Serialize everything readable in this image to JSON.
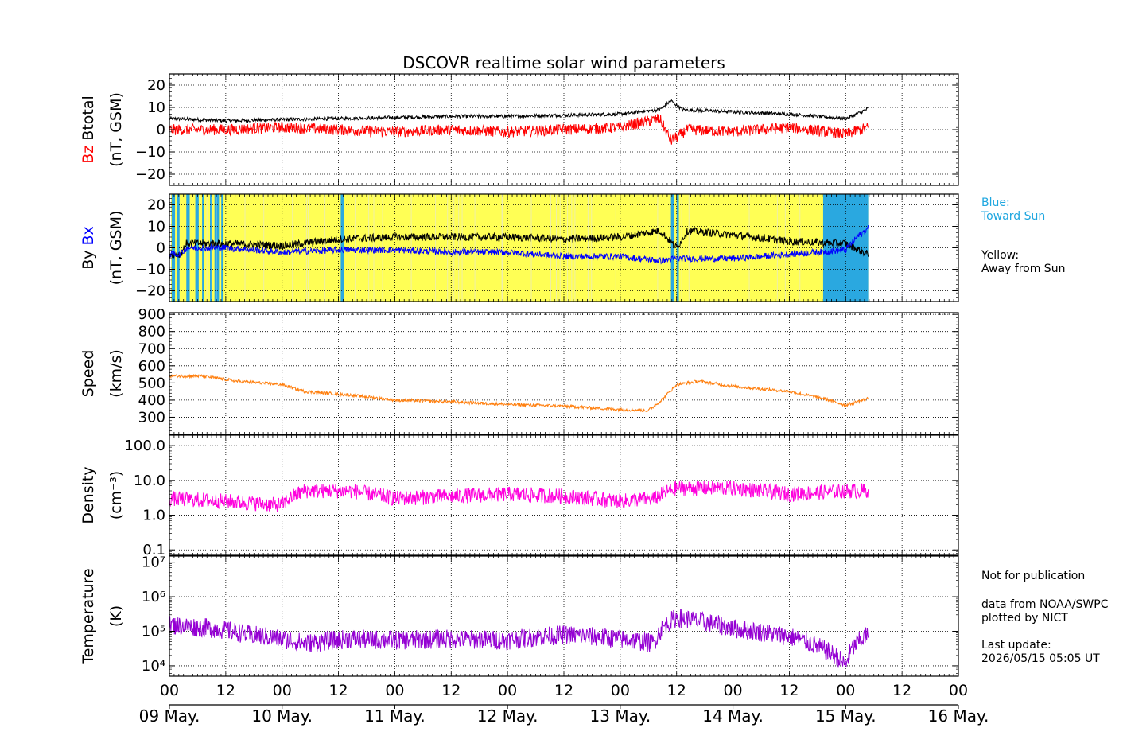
{
  "chart_data": {
    "type": "line",
    "title": "DSCOVR realtime solar wind parameters",
    "x_range_days": [
      0,
      7
    ],
    "x_tick_labels": [
      "00",
      "12",
      "00",
      "12",
      "00",
      "12",
      "00",
      "12",
      "00",
      "12",
      "00",
      "12",
      "00",
      "12",
      "00"
    ],
    "date_labels": [
      "09 May.",
      "10 May.",
      "11 May.",
      "12 May.",
      "13 May.",
      "14 May.",
      "15 May.",
      "16 May."
    ],
    "data_end_day": 6.2,
    "grid": true,
    "panels": [
      {
        "id": "mag-bz-bt",
        "ylabel_parts": [
          {
            "text": "Bz",
            "color": "#ff0000"
          },
          {
            "text": "Btotal",
            "color": "#000000"
          }
        ],
        "ylabel_unit": "(nT, GSM)",
        "ylim": [
          -25,
          25
        ],
        "scale": "linear",
        "ytick_labels": [
          "20",
          "10",
          "0",
          "−10",
          "−20"
        ],
        "ytick_values": [
          20,
          10,
          0,
          -10,
          -20
        ],
        "series": [
          {
            "name": "Btotal",
            "color": "#000000",
            "knots": [
              [
                0,
                5
              ],
              [
                0.5,
                4
              ],
              [
                1,
                4.5
              ],
              [
                1.5,
                5
              ],
              [
                2,
                5.5
              ],
              [
                2.5,
                6
              ],
              [
                3,
                6
              ],
              [
                3.5,
                6.5
              ],
              [
                4,
                7
              ],
              [
                4.35,
                9
              ],
              [
                4.45,
                13
              ],
              [
                4.55,
                9
              ],
              [
                5,
                8
              ],
              [
                5.5,
                7
              ],
              [
                6,
                5
              ],
              [
                6.1,
                7
              ],
              [
                6.2,
                9.5
              ]
            ],
            "noise": 0.8
          },
          {
            "name": "Bz",
            "color": "#ff0000",
            "knots": [
              [
                0,
                0
              ],
              [
                0.5,
                0
              ],
              [
                1,
                1
              ],
              [
                1.5,
                0
              ],
              [
                2,
                -1
              ],
              [
                2.5,
                0
              ],
              [
                3,
                -1
              ],
              [
                3.5,
                0
              ],
              [
                4,
                1
              ],
              [
                4.35,
                5
              ],
              [
                4.45,
                -5
              ],
              [
                4.6,
                0
              ],
              [
                5,
                -1
              ],
              [
                5.5,
                1
              ],
              [
                6,
                -2
              ],
              [
                6.2,
                1
              ]
            ],
            "noise": 2.5
          }
        ]
      },
      {
        "id": "mag-by-bx",
        "ylabel_parts": [
          {
            "text": "By",
            "color": "#000000"
          },
          {
            "text": "Bx",
            "color": "#0000ff"
          }
        ],
        "ylabel_unit": "(nT, GSM)",
        "ylim": [
          -25,
          25
        ],
        "scale": "linear",
        "ytick_labels": [
          "20",
          "10",
          "0",
          "−10",
          "−20"
        ],
        "ytick_values": [
          20,
          10,
          0,
          -10,
          -20
        ],
        "background": {
          "away_color": "#ffff55",
          "toward_color": "#2aa8e0",
          "toward_intervals": [
            [
              0.02,
              0.05
            ],
            [
              0.07,
              0.09
            ],
            [
              0.15,
              0.18
            ],
            [
              0.23,
              0.26
            ],
            [
              0.29,
              0.31
            ],
            [
              0.36,
              0.38
            ],
            [
              0.4,
              0.44
            ],
            [
              0.46,
              0.48
            ],
            [
              1.52,
              1.55
            ],
            [
              4.45,
              4.48
            ],
            [
              4.5,
              4.52
            ],
            [
              5.82,
              5.84
            ],
            [
              5.8,
              6.2
            ]
          ]
        },
        "series": [
          {
            "name": "By",
            "color": "#000000",
            "knots": [
              [
                0,
                -3
              ],
              [
                0.1,
                -3
              ],
              [
                0.15,
                2
              ],
              [
                0.5,
                2
              ],
              [
                1,
                1
              ],
              [
                1.5,
                4
              ],
              [
                2,
                5
              ],
              [
                2.5,
                5
              ],
              [
                3,
                5
              ],
              [
                3.5,
                4
              ],
              [
                4,
                5
              ],
              [
                4.35,
                8
              ],
              [
                4.5,
                0
              ],
              [
                4.6,
                8
              ],
              [
                5,
                6
              ],
              [
                5.5,
                3
              ],
              [
                6,
                2
              ],
              [
                6.2,
                -3
              ]
            ],
            "noise": 1.8
          },
          {
            "name": "Bx",
            "color": "#0000ff",
            "knots": [
              [
                0,
                -3
              ],
              [
                0.1,
                -3
              ],
              [
                0.15,
                0
              ],
              [
                0.5,
                0
              ],
              [
                1,
                -2
              ],
              [
                1.5,
                -1
              ],
              [
                2,
                -1
              ],
              [
                2.5,
                -2
              ],
              [
                3,
                -2
              ],
              [
                3.5,
                -4
              ],
              [
                4,
                -4
              ],
              [
                4.35,
                -6
              ],
              [
                4.5,
                -5
              ],
              [
                5,
                -5
              ],
              [
                5.5,
                -3
              ],
              [
                6,
                -1
              ],
              [
                6.1,
                5
              ],
              [
                6.2,
                9
              ]
            ],
            "noise": 1.5
          }
        ]
      },
      {
        "id": "speed",
        "ylabel_parts": [
          {
            "text": "Speed",
            "color": "#000000"
          }
        ],
        "ylabel_unit": "(km/s)",
        "ylim": [
          200,
          910
        ],
        "scale": "linear",
        "ytick_labels": [
          "900",
          "800",
          "700",
          "600",
          "500",
          "400",
          "300"
        ],
        "ytick_values": [
          900,
          800,
          700,
          600,
          500,
          400,
          300
        ],
        "series": [
          {
            "name": "Speed",
            "color": "#ff7f0e",
            "knots": [
              [
                0,
                540
              ],
              [
                0.3,
                540
              ],
              [
                0.6,
                510
              ],
              [
                1,
                490
              ],
              [
                1.2,
                450
              ],
              [
                1.6,
                430
              ],
              [
                2,
                400
              ],
              [
                2.5,
                390
              ],
              [
                3,
                375
              ],
              [
                3.5,
                365
              ],
              [
                4,
                345
              ],
              [
                4.25,
                340
              ],
              [
                4.35,
                390
              ],
              [
                4.5,
                490
              ],
              [
                4.7,
                510
              ],
              [
                5,
                480
              ],
              [
                5.5,
                450
              ],
              [
                5.8,
                410
              ],
              [
                6,
                370
              ],
              [
                6.2,
                410
              ]
            ],
            "noise": 9
          }
        ]
      },
      {
        "id": "density",
        "ylabel_parts": [
          {
            "text": "Density",
            "color": "#000000"
          }
        ],
        "ylabel_unit": "(cm⁻³)",
        "ylim": [
          0.07,
          200
        ],
        "scale": "log",
        "ytick_labels": [
          "100.0",
          "10.0",
          "1.0",
          "0.1"
        ],
        "ytick_values": [
          100,
          10,
          1,
          0.1
        ],
        "series": [
          {
            "name": "Density",
            "color": "#ff00dd",
            "knots": [
              [
                0,
                3
              ],
              [
                0.5,
                2.5
              ],
              [
                0.9,
                2
              ],
              [
                1,
                2
              ],
              [
                1.2,
                5
              ],
              [
                1.6,
                5
              ],
              [
                2,
                3
              ],
              [
                2.5,
                3.5
              ],
              [
                3,
                4
              ],
              [
                3.5,
                3.5
              ],
              [
                4,
                2.5
              ],
              [
                4.3,
                3
              ],
              [
                4.5,
                6
              ],
              [
                5,
                6
              ],
              [
                5.5,
                4
              ],
              [
                6,
                5
              ],
              [
                6.2,
                5
              ]
            ],
            "noise": 0.22
          }
        ]
      },
      {
        "id": "temperature",
        "ylabel_parts": [
          {
            "text": "Temperature",
            "color": "#000000"
          }
        ],
        "ylabel_unit": "(K)",
        "ylim": [
          5000,
          15000000
        ],
        "scale": "log",
        "ytick_labels": [
          "10⁷",
          "10⁶",
          "10⁵",
          "10⁴"
        ],
        "ytick_values": [
          10000000,
          1000000,
          100000,
          10000
        ],
        "series": [
          {
            "name": "Temperature",
            "color": "#9400d3",
            "knots": [
              [
                0,
                150000
              ],
              [
                0.4,
                120000
              ],
              [
                0.7,
                80000
              ],
              [
                1,
                60000
              ],
              [
                1.2,
                45000
              ],
              [
                1.6,
                60000
              ],
              [
                2,
                55000
              ],
              [
                2.5,
                60000
              ],
              [
                3,
                55000
              ],
              [
                3.5,
                80000
              ],
              [
                4,
                60000
              ],
              [
                4.3,
                45000
              ],
              [
                4.5,
                250000
              ],
              [
                5,
                120000
              ],
              [
                5.5,
                70000
              ],
              [
                5.8,
                30000
              ],
              [
                6,
                10000
              ],
              [
                6.2,
                80000
              ]
            ],
            "noise": 0.28
          }
        ]
      }
    ]
  },
  "side_text": {
    "blue_label": "Blue:\nToward Sun",
    "yellow_label": "Yellow:\nAway from Sun",
    "not_for_publication": "Not for publication",
    "data_source": "data from NOAA/SWPC\nplotted by NICT",
    "last_update": "Last update:\n2026/05/15 05:05 UT",
    "blue_color": "#1fa7e0"
  }
}
